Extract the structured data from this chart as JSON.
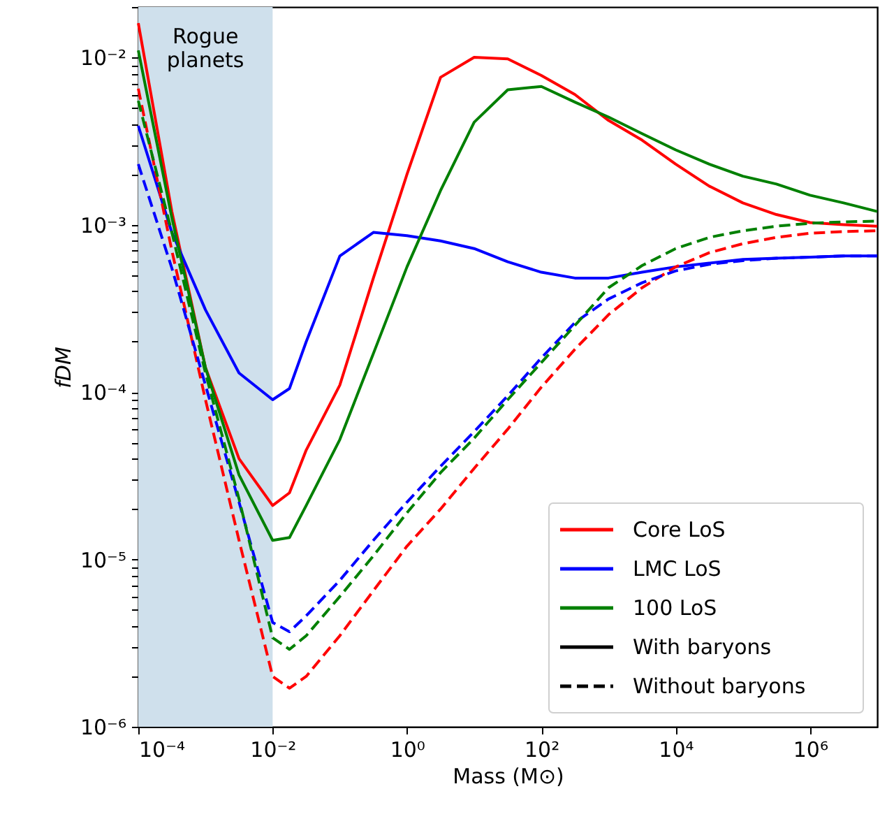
{
  "chart_data": {
    "type": "line",
    "xlabel": "Mass (M⊙)",
    "ylabel": "fDM",
    "log": "xy",
    "grid": false,
    "legend": "bottom right",
    "xlim": [
      0.0001,
      10000000.0
    ],
    "ylim": [
      1e-06,
      0.02
    ],
    "xticks": [
      {
        "value": 0.0001,
        "label": "10⁻⁴"
      },
      {
        "value": 0.01,
        "label": "10⁻²"
      },
      {
        "value": 1,
        "label": "10⁰"
      },
      {
        "value": 100.0,
        "label": "10²"
      },
      {
        "value": 10000.0,
        "label": "10⁴"
      },
      {
        "value": 1000000.0,
        "label": "10⁶"
      }
    ],
    "yticks": [
      {
        "value": 1e-06,
        "label": "10⁻⁶"
      },
      {
        "value": 2e-06,
        "label": null
      },
      {
        "value": 3e-06,
        "label": null
      },
      {
        "value": 4e-06,
        "label": null
      },
      {
        "value": 5e-06,
        "label": null
      },
      {
        "value": 6e-06,
        "label": null
      },
      {
        "value": 7e-06,
        "label": null
      },
      {
        "value": 8e-06,
        "label": null
      },
      {
        "value": 9e-06,
        "label": null
      },
      {
        "value": 1e-05,
        "label": "10⁻⁵"
      },
      {
        "value": 2e-05,
        "label": null
      },
      {
        "value": 3e-05,
        "label": null
      },
      {
        "value": 4e-05,
        "label": null
      },
      {
        "value": 5e-05,
        "label": null
      },
      {
        "value": 6e-05,
        "label": null
      },
      {
        "value": 7e-05,
        "label": null
      },
      {
        "value": 8e-05,
        "label": null
      },
      {
        "value": 9e-05,
        "label": null
      },
      {
        "value": 0.0001,
        "label": "10⁻⁴"
      },
      {
        "value": 0.0002,
        "label": null
      },
      {
        "value": 0.0003,
        "label": null
      },
      {
        "value": 0.0004,
        "label": null
      },
      {
        "value": 0.0005,
        "label": null
      },
      {
        "value": 0.0006,
        "label": null
      },
      {
        "value": 0.0007,
        "label": null
      },
      {
        "value": 0.0008,
        "label": null
      },
      {
        "value": 0.0009,
        "label": null
      },
      {
        "value": 0.001,
        "label": "10⁻³"
      },
      {
        "value": 0.002,
        "label": null
      },
      {
        "value": 0.003,
        "label": null
      },
      {
        "value": 0.004,
        "label": null
      },
      {
        "value": 0.005,
        "label": null
      },
      {
        "value": 0.006,
        "label": null
      },
      {
        "value": 0.007,
        "label": null
      },
      {
        "value": 0.008,
        "label": null
      },
      {
        "value": 0.009,
        "label": null
      },
      {
        "value": 0.01,
        "label": "10⁻²"
      },
      {
        "value": 0.02,
        "label": null
      }
    ],
    "bands": [
      {
        "axis": "x",
        "from": 0.0001,
        "to": 0.01,
        "label": "Rogue planets",
        "color": "#cfe0ec"
      }
    ],
    "annotations": [
      "With baryons",
      "Without baryons"
    ],
    "series": [
      {
        "name": "Core LoS",
        "color": "#ff0000",
        "line_style": "solid",
        "x": [
          0.0001,
          0.000316,
          0.001,
          0.00316,
          0.01,
          0.0178,
          0.0316,
          0.1,
          0.316,
          1,
          3.16,
          10,
          31.6,
          100,
          316,
          1000,
          3160,
          10000.0,
          31600.0,
          100000.0,
          316000.0,
          1000000.0,
          3160000.0,
          10000000.0
        ],
        "values": [
          0.016,
          0.0012,
          0.00014,
          4e-05,
          2.1e-05,
          2.5e-05,
          4.5e-05,
          0.00011,
          0.00048,
          0.002,
          0.0076,
          0.01,
          0.0098,
          0.0078,
          0.006,
          0.0042,
          0.0032,
          0.0023,
          0.0017,
          0.00135,
          0.00115,
          0.00103,
          0.001,
          0.00098
        ]
      },
      {
        "name": "LMC LoS",
        "color": "#0000ff",
        "line_style": "solid",
        "x": [
          0.0001,
          0.000316,
          0.001,
          0.00316,
          0.01,
          0.0178,
          0.0316,
          0.1,
          0.316,
          1,
          3.16,
          10,
          31.6,
          100,
          316,
          1000,
          3160,
          10000.0,
          31600.0,
          100000.0,
          316000.0,
          1000000.0,
          3160000.0,
          10000000.0
        ],
        "values": [
          0.0039,
          0.0009,
          0.00031,
          0.00013,
          9e-05,
          0.000105,
          0.0002,
          0.00065,
          0.0009,
          0.00086,
          0.0008,
          0.00072,
          0.0006,
          0.00052,
          0.00048,
          0.00048,
          0.00052,
          0.00056,
          0.00059,
          0.00062,
          0.00063,
          0.00064,
          0.00065,
          0.00065
        ]
      },
      {
        "name": "100 LoS",
        "color": "#008000",
        "line_style": "solid",
        "x": [
          0.0001,
          0.000316,
          0.001,
          0.00316,
          0.01,
          0.0178,
          0.0316,
          0.1,
          0.316,
          1,
          3.16,
          10,
          31.6,
          100,
          316,
          1000,
          3160,
          10000.0,
          31600.0,
          100000.0,
          316000.0,
          1000000.0,
          3160000.0,
          10000000.0
        ],
        "values": [
          0.011,
          0.0011,
          0.00014,
          3.2e-05,
          1.3e-05,
          1.35e-05,
          2.1e-05,
          5.2e-05,
          0.00017,
          0.00056,
          0.0016,
          0.0041,
          0.0064,
          0.0067,
          0.0054,
          0.0044,
          0.0035,
          0.0028,
          0.0023,
          0.00195,
          0.00175,
          0.0015,
          0.00135,
          0.0012
        ]
      },
      {
        "color": "#ff0000",
        "line_style": "dashed",
        "x": [
          0.0001,
          0.000316,
          0.001,
          0.00316,
          0.01,
          0.0178,
          0.0316,
          0.1,
          0.316,
          1,
          3.16,
          10,
          31.6,
          100,
          316,
          1000,
          3160,
          10000.0,
          31600.0,
          100000.0,
          316000.0,
          1000000.0,
          3160000.0,
          10000000.0
        ],
        "values": [
          0.0065,
          0.0007,
          9e-05,
          1.3e-05,
          2e-06,
          1.7e-06,
          2e-06,
          3.5e-06,
          6.5e-06,
          1.2e-05,
          2e-05,
          3.5e-05,
          6e-05,
          0.000107,
          0.00018,
          0.00029,
          0.00042,
          0.00056,
          0.00068,
          0.00077,
          0.00084,
          0.00089,
          0.00091,
          0.00092
        ]
      },
      {
        "color": "#0000ff",
        "line_style": "dashed",
        "x": [
          0.0001,
          0.000316,
          0.001,
          0.00316,
          0.01,
          0.0178,
          0.0316,
          0.1,
          0.316,
          1,
          3.16,
          10,
          31.6,
          100,
          316,
          1000,
          3160,
          10000.0,
          31600.0,
          100000.0,
          316000.0,
          1000000.0,
          3160000.0,
          10000000.0
        ],
        "values": [
          0.0023,
          0.00055,
          0.00011,
          2.2e-05,
          4.2e-06,
          3.7e-06,
          4.6e-06,
          7.5e-06,
          1.3e-05,
          2.2e-05,
          3.6e-05,
          5.8e-05,
          9.5e-05,
          0.00016,
          0.00026,
          0.00036,
          0.00045,
          0.00053,
          0.00058,
          0.00061,
          0.00063,
          0.00064,
          0.00065,
          0.00065
        ]
      },
      {
        "color": "#008000",
        "line_style": "dashed",
        "x": [
          0.0001,
          0.000316,
          0.001,
          0.00316,
          0.01,
          0.0178,
          0.0316,
          0.1,
          0.316,
          1,
          3.16,
          10,
          31.6,
          100,
          316,
          1000,
          3160,
          10000.0,
          31600.0,
          100000.0,
          316000.0,
          1000000.0,
          3160000.0,
          10000000.0
        ],
        "values": [
          0.0055,
          0.0009,
          0.00013,
          2.3e-05,
          3.4e-06,
          2.9e-06,
          3.5e-06,
          6e-06,
          1.05e-05,
          1.9e-05,
          3.3e-05,
          5.3e-05,
          9e-05,
          0.00015,
          0.00025,
          0.00042,
          0.00057,
          0.00072,
          0.00084,
          0.00092,
          0.00098,
          0.00102,
          0.00104,
          0.00105
        ]
      }
    ]
  }
}
